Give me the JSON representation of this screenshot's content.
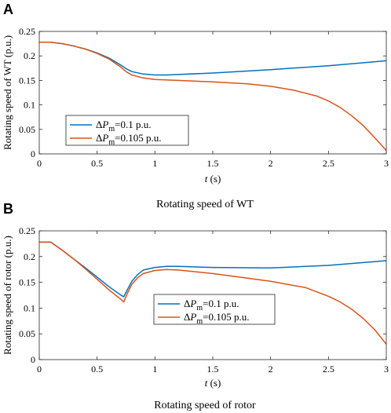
{
  "chart_data": [
    {
      "type": "line",
      "panel": "A",
      "caption": "Rotating speed of WT",
      "xlabel_italic": "t",
      "xlabel_unit": " (s)",
      "ylabel": "Rotating speed of WT (p.u.)",
      "xlim": [
        0,
        3
      ],
      "ylim": [
        0,
        0.25
      ],
      "xticks": [
        "0",
        "0.5",
        "1",
        "1.5",
        "2",
        "2.5",
        "3"
      ],
      "yticks": [
        "0",
        "0.05",
        "0.1",
        "0.15",
        "0.2",
        "0.25"
      ],
      "legend_position": "lower-left",
      "series": [
        {
          "name": "ΔP_m=0.1 p.u.",
          "delta": "Δ",
          "p": "P",
          "sub": "m",
          "rest": "=0.1 p.u.",
          "color": "#0072BD",
          "x": [
            0,
            0.1,
            0.2,
            0.3,
            0.4,
            0.5,
            0.6,
            0.7,
            0.75,
            0.8,
            0.9,
            1.0,
            1.1,
            1.2,
            1.5,
            2.0,
            2.5,
            3.0
          ],
          "y": [
            0.228,
            0.228,
            0.225,
            0.22,
            0.214,
            0.206,
            0.196,
            0.182,
            0.174,
            0.168,
            0.163,
            0.161,
            0.161,
            0.162,
            0.165,
            0.172,
            0.18,
            0.19
          ]
        },
        {
          "name": "ΔP_m=0.105 p.u.",
          "delta": "Δ",
          "p": "P",
          "sub": "m",
          "rest": "=0.105 p.u.",
          "color": "#D95319",
          "x": [
            0,
            0.1,
            0.2,
            0.3,
            0.4,
            0.5,
            0.6,
            0.7,
            0.75,
            0.8,
            0.9,
            1.0,
            1.2,
            1.5,
            1.8,
            2.0,
            2.2,
            2.4,
            2.5,
            2.6,
            2.7,
            2.8,
            2.9,
            3.0
          ],
          "y": [
            0.228,
            0.228,
            0.225,
            0.22,
            0.214,
            0.205,
            0.194,
            0.178,
            0.168,
            0.161,
            0.155,
            0.152,
            0.15,
            0.147,
            0.143,
            0.138,
            0.13,
            0.118,
            0.108,
            0.095,
            0.078,
            0.058,
            0.033,
            0.007
          ]
        }
      ]
    },
    {
      "type": "line",
      "panel": "B",
      "caption": "Rotating speed of rotor",
      "xlabel_italic": "t",
      "xlabel_unit": " (s)",
      "ylabel": "Rotating speed of rotor (p.u.)",
      "xlim": [
        0,
        3
      ],
      "ylim": [
        0,
        0.25
      ],
      "xticks": [
        "0",
        "0.5",
        "1",
        "1.5",
        "2",
        "2.5",
        "3"
      ],
      "yticks": [
        "0",
        "0.05",
        "0.1",
        "0.15",
        "0.2",
        "0.25"
      ],
      "legend_position": "lower-center",
      "series": [
        {
          "name": "ΔP_m=0.1 p.u.",
          "delta": "Δ",
          "p": "P",
          "sub": "m",
          "rest": "=0.1 p.u.",
          "color": "#0072BD",
          "x": [
            0,
            0.1,
            0.2,
            0.3,
            0.4,
            0.5,
            0.6,
            0.7,
            0.73,
            0.76,
            0.8,
            0.85,
            0.9,
            1.0,
            1.1,
            1.2,
            1.5,
            2.0,
            2.5,
            3.0
          ],
          "y": [
            0.228,
            0.228,
            0.212,
            0.195,
            0.178,
            0.16,
            0.142,
            0.126,
            0.122,
            0.135,
            0.152,
            0.165,
            0.174,
            0.179,
            0.181,
            0.181,
            0.179,
            0.178,
            0.183,
            0.192
          ]
        },
        {
          "name": "ΔP_m=0.105 p.u.",
          "delta": "Δ",
          "p": "P",
          "sub": "m",
          "rest": "=0.105 p.u.",
          "color": "#D95319",
          "x": [
            0,
            0.1,
            0.2,
            0.3,
            0.4,
            0.5,
            0.6,
            0.7,
            0.73,
            0.76,
            0.8,
            0.85,
            0.9,
            1.0,
            1.1,
            1.2,
            1.5,
            2.0,
            2.3,
            2.5,
            2.6,
            2.7,
            2.8,
            2.9,
            3.0
          ],
          "y": [
            0.228,
            0.228,
            0.212,
            0.195,
            0.176,
            0.156,
            0.136,
            0.118,
            0.112,
            0.128,
            0.146,
            0.159,
            0.167,
            0.173,
            0.175,
            0.174,
            0.167,
            0.152,
            0.14,
            0.123,
            0.112,
            0.098,
            0.08,
            0.058,
            0.03
          ]
        }
      ]
    }
  ]
}
